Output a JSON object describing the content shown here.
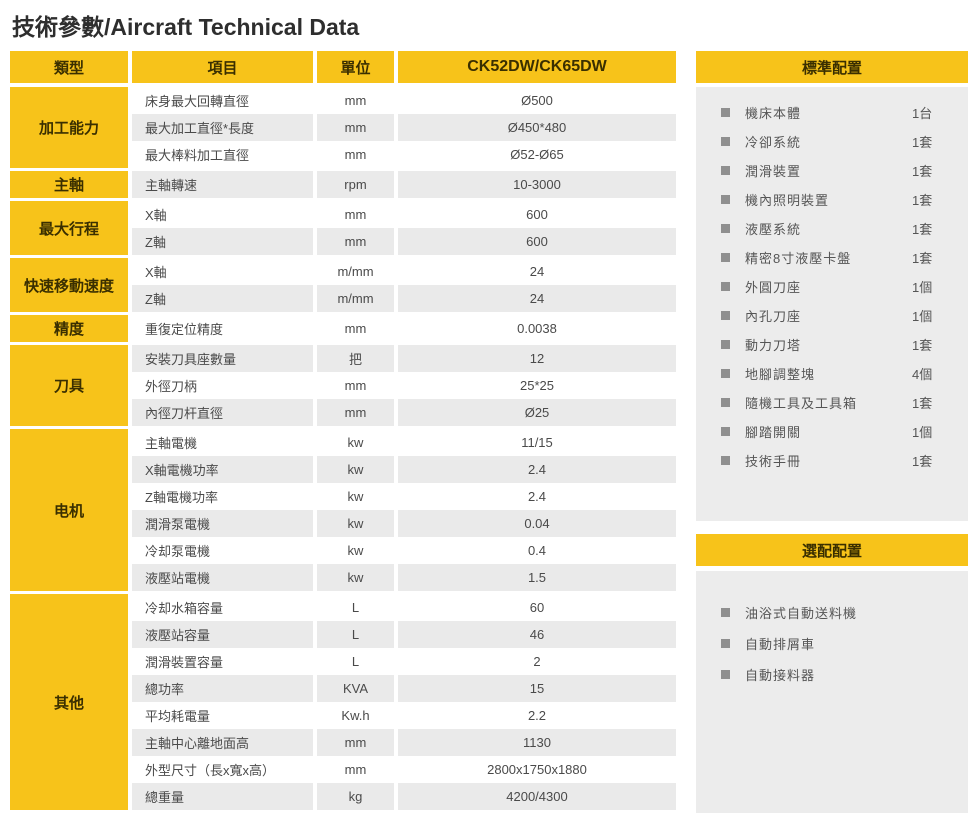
{
  "page": {
    "title": "技術參數/Aircraft Technical Data"
  },
  "colors": {
    "accent_yellow": "#F7C31A",
    "row_alt_gray": "#EAEAEA",
    "panel_gray": "#ECECEC",
    "bullet_gray": "#8F8F8F",
    "text_on_yellow": "#3A2F00"
  },
  "table": {
    "headers": {
      "category": "類型",
      "item": "項目",
      "unit": "單位",
      "model": "CK52DW/CK65DW"
    },
    "sections": [
      {
        "category": "加工能力",
        "rows": [
          {
            "item": "床身最大回轉直徑",
            "unit": "mm",
            "value": "Ø500"
          },
          {
            "item": "最大加工直徑*長度",
            "unit": "mm",
            "value": "Ø450*480"
          },
          {
            "item": "最大棒料加工直徑",
            "unit": "mm",
            "value": "Ø52-Ø65"
          }
        ]
      },
      {
        "category": "主軸",
        "rows": [
          {
            "item": "主軸轉速",
            "unit": "rpm",
            "value": "10-3000"
          }
        ]
      },
      {
        "category": "最大行程",
        "rows": [
          {
            "item": "X軸",
            "unit": "mm",
            "value": "600"
          },
          {
            "item": "Z軸",
            "unit": "mm",
            "value": "600"
          }
        ]
      },
      {
        "category": "快速移動速度",
        "rows": [
          {
            "item": "X軸",
            "unit": "m/mm",
            "value": "24"
          },
          {
            "item": "Z軸",
            "unit": "m/mm",
            "value": "24"
          }
        ]
      },
      {
        "category": "精度",
        "rows": [
          {
            "item": "重復定位精度",
            "unit": "mm",
            "value": "0.0038"
          }
        ]
      },
      {
        "category": "刀具",
        "rows": [
          {
            "item": "安裝刀具座數量",
            "unit": "把",
            "value": "12"
          },
          {
            "item": "外徑刀柄",
            "unit": "mm",
            "value": "25*25"
          },
          {
            "item": "內徑刀杆直徑",
            "unit": "mm",
            "value": "Ø25"
          }
        ]
      },
      {
        "category": "电机",
        "rows": [
          {
            "item": "主軸電機",
            "unit": "kw",
            "value": "11/15"
          },
          {
            "item": "X軸電機功率",
            "unit": "kw",
            "value": "2.4"
          },
          {
            "item": "Z軸電機功率",
            "unit": "kw",
            "value": "2.4"
          },
          {
            "item": "潤滑泵電機",
            "unit": "kw",
            "value": "0.04"
          },
          {
            "item": "冷却泵電機",
            "unit": "kw",
            "value": "0.4"
          },
          {
            "item": "液壓站電機",
            "unit": "kw",
            "value": "1.5"
          }
        ]
      },
      {
        "category": "其他",
        "rows": [
          {
            "item": "冷却水箱容量",
            "unit": "L",
            "value": "60"
          },
          {
            "item": "液壓站容量",
            "unit": "L",
            "value": "46"
          },
          {
            "item": "潤滑裝置容量",
            "unit": "L",
            "value": "2"
          },
          {
            "item": "總功率",
            "unit": "KVA",
            "value": "15"
          },
          {
            "item": "平均耗電量",
            "unit": "Kw.h",
            "value": "2.2"
          },
          {
            "item": "主軸中心離地面高",
            "unit": "mm",
            "value": "1130"
          },
          {
            "item": "外型尺寸（長x寬x高）",
            "unit": "mm",
            "value": "2800x1750x1880"
          },
          {
            "item": "總重量",
            "unit": "kg",
            "value": "4200/4300"
          }
        ]
      }
    ]
  },
  "standard": {
    "title": "標準配置",
    "items": [
      {
        "label": "機床本體",
        "qty": "1台"
      },
      {
        "label": "冷卻系統",
        "qty": "1套"
      },
      {
        "label": "潤滑裝置",
        "qty": "1套"
      },
      {
        "label": "機內照明裝置",
        "qty": "1套"
      },
      {
        "label": "液壓系統",
        "qty": "1套"
      },
      {
        "label": "精密8寸液壓卡盤",
        "qty": "1套"
      },
      {
        "label": "外圓刀座",
        "qty": "1個"
      },
      {
        "label": "內孔刀座",
        "qty": "1個"
      },
      {
        "label": "動力刀塔",
        "qty": "1套"
      },
      {
        "label": "地腳調整塊",
        "qty": "4個"
      },
      {
        "label": "隨機工具及工具箱",
        "qty": "1套"
      },
      {
        "label": "腳踏開關",
        "qty": "1個"
      },
      {
        "label": "技術手冊",
        "qty": "1套"
      }
    ]
  },
  "optional": {
    "title": "選配配置",
    "items": [
      {
        "label": "油浴式自動送料機"
      },
      {
        "label": "自動排屑車"
      },
      {
        "label": "自動接料器"
      }
    ]
  }
}
